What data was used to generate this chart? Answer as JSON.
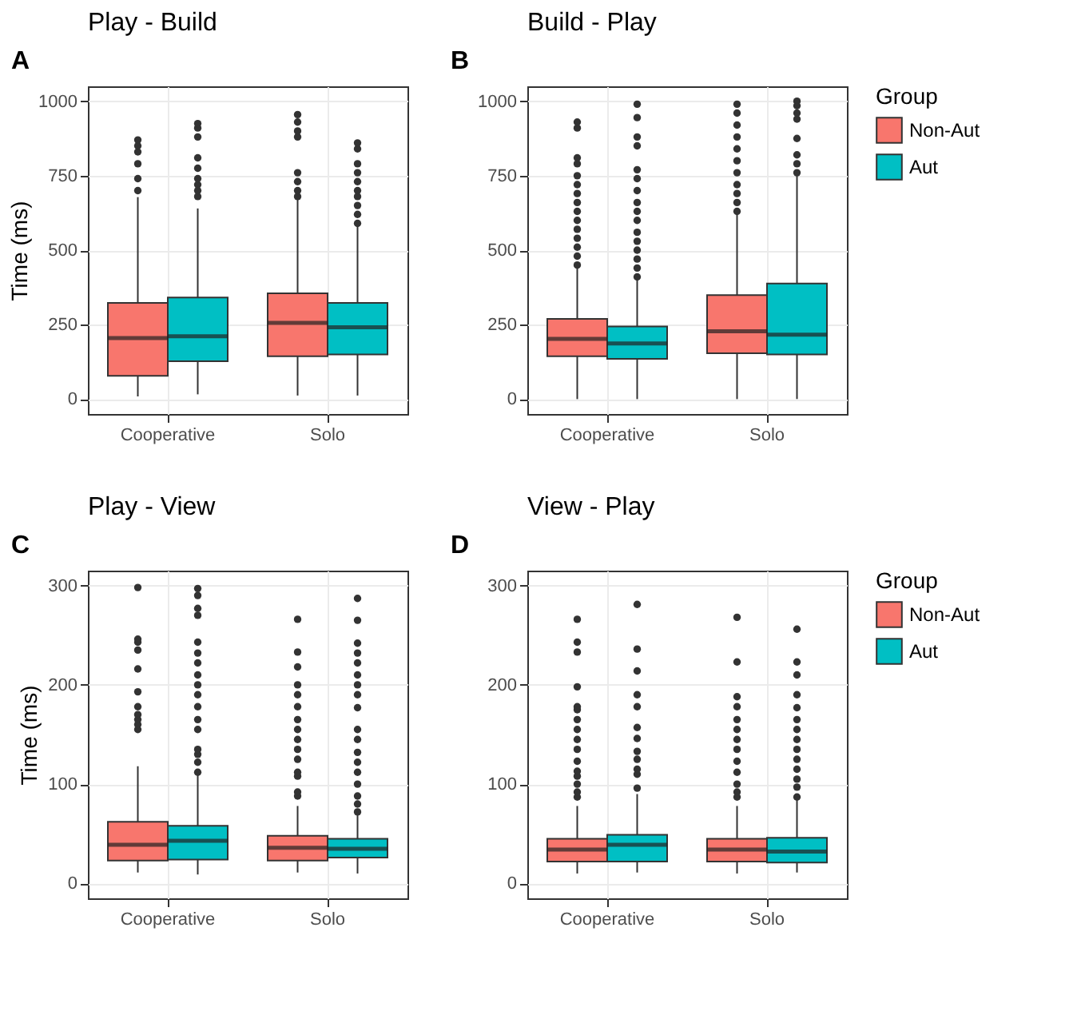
{
  "chart_data": [
    {
      "type": "box",
      "title": "Play - Build",
      "ylabel": "Time (ms)",
      "annotations": [
        "A"
      ],
      "categories": [
        "Cooperative",
        "Solo"
      ],
      "ylim": [
        -50,
        1050
      ],
      "yticks": [
        0,
        250,
        500,
        750,
        1000
      ],
      "grid": true,
      "series": [
        {
          "color": "#f8766d",
          "boxes": [
            {
              "low": 9,
              "q1": 78,
              "median": 205,
              "q3": 323,
              "high": 678,
              "outliers": [
                700,
                740,
                790,
                830,
                850,
                870
              ]
            },
            {
              "low": 12,
              "q1": 144,
              "median": 256,
              "q3": 355,
              "high": 670,
              "outliers": [
                680,
                700,
                730,
                760,
                880,
                900,
                930,
                955
              ]
            }
          ]
        },
        {
          "color": "#00bfc4",
          "boxes": [
            {
              "low": 16,
              "q1": 127,
              "median": 211,
              "q3": 341,
              "high": 640,
              "outliers": [
                680,
                700,
                720,
                740,
                775,
                810,
                880,
                910,
                925
              ]
            },
            {
              "low": 12,
              "q1": 150,
              "median": 241,
              "q3": 323,
              "high": 584,
              "outliers": [
                590,
                620,
                650,
                680,
                700,
                730,
                760,
                790,
                840,
                860
              ]
            }
          ]
        }
      ]
    },
    {
      "type": "box",
      "title": "Build - Play",
      "annotations": [
        "B"
      ],
      "categories": [
        "Cooperative",
        "Solo"
      ],
      "ylim": [
        -50,
        1050
      ],
      "yticks": [
        0,
        250,
        500,
        750,
        1000
      ],
      "grid": true,
      "legend": "right",
      "legend_title": "Group",
      "series": [
        {
          "name": "Non-Aut",
          "color": "#f8766d",
          "boxes": [
            {
              "low": 0,
              "q1": 144,
              "median": 202,
              "q3": 269,
              "high": 445,
              "outliers": [
                450,
                480,
                510,
                540,
                570,
                600,
                630,
                660,
                690,
                720,
                750,
                790,
                810,
                910,
                930
              ]
            },
            {
              "low": 0,
              "q1": 154,
              "median": 228,
              "q3": 349,
              "high": 625,
              "outliers": [
                630,
                660,
                690,
                720,
                760,
                800,
                840,
                880,
                920,
                960,
                990
              ]
            }
          ]
        },
        {
          "name": "Aut",
          "color": "#00bfc4",
          "boxes": [
            {
              "low": 0,
              "q1": 135,
              "median": 187,
              "q3": 244,
              "high": 405,
              "outliers": [
                410,
                440,
                470,
                500,
                530,
                560,
                600,
                630,
                660,
                700,
                740,
                770,
                850,
                880,
                945,
                990
              ]
            },
            {
              "low": 0,
              "q1": 150,
              "median": 216,
              "q3": 388,
              "high": 755,
              "outliers": [
                760,
                790,
                820,
                875,
                940,
                960,
                985,
                1000
              ]
            }
          ]
        }
      ]
    },
    {
      "type": "box",
      "title": "Play - View",
      "ylabel": "Time (ms)",
      "annotations": [
        "C"
      ],
      "categories": [
        "Cooperative",
        "Solo"
      ],
      "ylim": [
        -15,
        315
      ],
      "yticks": [
        0,
        100,
        200,
        300
      ],
      "grid": true,
      "series": [
        {
          "color": "#f8766d",
          "boxes": [
            {
              "low": 11,
              "q1": 23,
              "median": 39,
              "q3": 62,
              "high": 118,
              "outliers": [
                155,
                160,
                165,
                170,
                178,
                193,
                216,
                235,
                243,
                246,
                298
              ]
            },
            {
              "low": 11,
              "q1": 23,
              "median": 36,
              "q3": 48,
              "high": 78,
              "outliers": [
                88,
                92,
                108,
                112,
                125,
                135,
                145,
                155,
                165,
                178,
                190,
                200,
                218,
                233,
                266
              ]
            }
          ]
        },
        {
          "color": "#00bfc4",
          "boxes": [
            {
              "low": 9,
              "q1": 24,
              "median": 43,
              "q3": 58,
              "high": 110,
              "outliers": [
                112,
                122,
                130,
                135,
                155,
                165,
                178,
                190,
                200,
                210,
                222,
                232,
                243,
                270,
                277,
                290,
                297
              ]
            },
            {
              "low": 10,
              "q1": 26,
              "median": 35,
              "q3": 45,
              "high": 70,
              "outliers": [
                72,
                80,
                88,
                100,
                112,
                122,
                132,
                145,
                155,
                177,
                190,
                200,
                210,
                222,
                232,
                242,
                265,
                287
              ]
            }
          ]
        }
      ]
    },
    {
      "type": "box",
      "title": "View - Play",
      "annotations": [
        "D"
      ],
      "categories": [
        "Cooperative",
        "Solo"
      ],
      "ylim": [
        -15,
        315
      ],
      "yticks": [
        0,
        100,
        200,
        300
      ],
      "grid": true,
      "legend": "right",
      "legend_title": "Group",
      "series": [
        {
          "name": "Non-Aut",
          "color": "#f8766d",
          "boxes": [
            {
              "low": 10,
              "q1": 22,
              "median": 34,
              "q3": 45,
              "high": 78,
              "outliers": [
                87,
                92,
                100,
                108,
                113,
                123,
                135,
                145,
                155,
                165,
                175,
                178,
                198,
                233,
                243,
                266
              ]
            },
            {
              "low": 10,
              "q1": 22,
              "median": 34,
              "q3": 45,
              "high": 78,
              "outliers": [
                87,
                92,
                100,
                112,
                123,
                135,
                145,
                155,
                165,
                178,
                188,
                223,
                268
              ]
            }
          ]
        },
        {
          "name": "Aut",
          "color": "#00bfc4",
          "boxes": [
            {
              "low": 11,
              "q1": 22,
              "median": 39,
              "q3": 49,
              "high": 90,
              "outliers": [
                96,
                110,
                115,
                125,
                133,
                146,
                157,
                178,
                190,
                214,
                236,
                281
              ]
            },
            {
              "low": 11,
              "q1": 21,
              "median": 32,
              "q3": 46,
              "high": 87,
              "outliers": [
                87,
                97,
                105,
                115,
                125,
                135,
                145,
                155,
                165,
                177,
                190,
                210,
                223,
                256
              ]
            }
          ]
        }
      ]
    }
  ]
}
